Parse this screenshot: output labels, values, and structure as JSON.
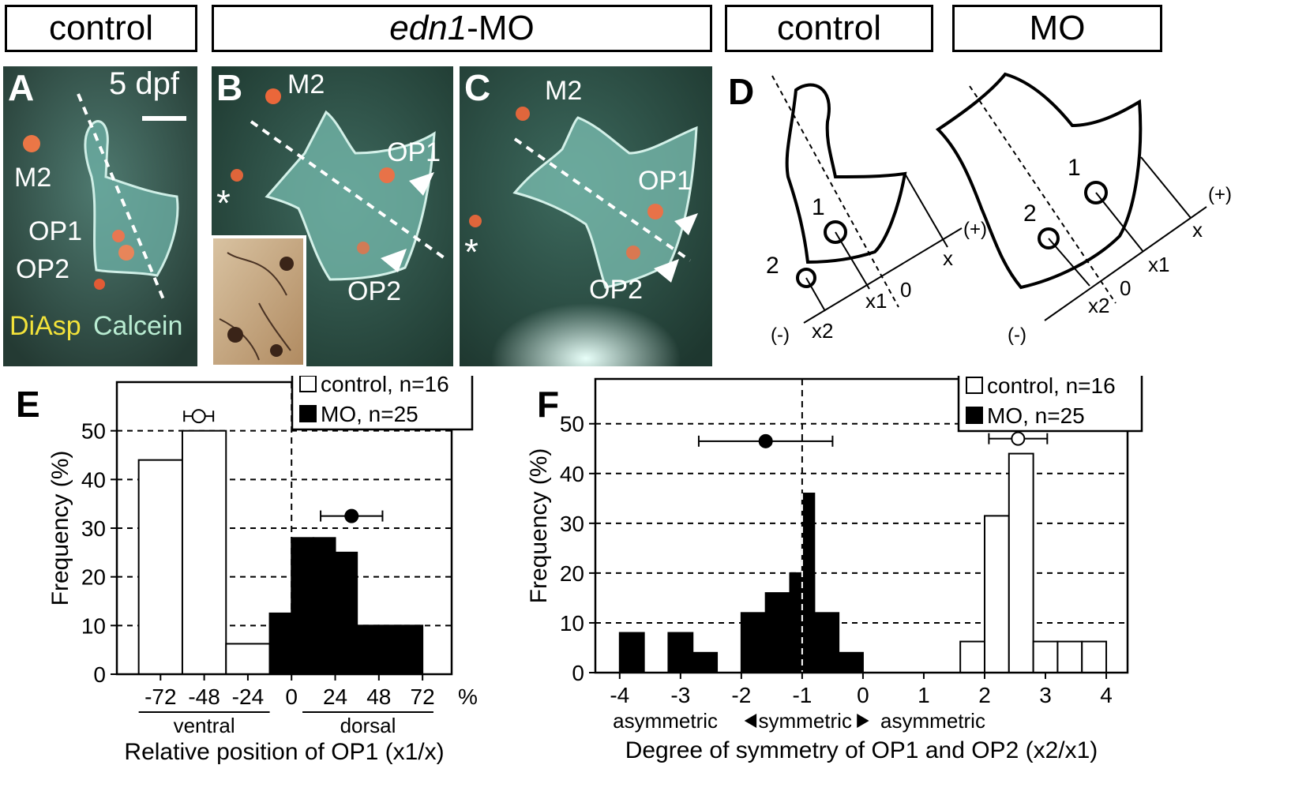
{
  "headers": {
    "control_left": "control",
    "edn1_italic": "edn1",
    "edn1_suffix": "-MO",
    "control_right": "control",
    "mo_right": "MO"
  },
  "panelA": {
    "letter": "A",
    "time": "5 dpf",
    "labels": {
      "m2": "M2",
      "op1": "OP1",
      "op2": "OP2"
    },
    "stain1": "DiAsp",
    "stain2": "Calcein"
  },
  "panelB": {
    "letter": "B",
    "labels": {
      "m2": "M2",
      "op1": "OP1",
      "op2": "OP2",
      "star": "*"
    }
  },
  "panelC": {
    "letter": "C",
    "labels": {
      "m2": "M2",
      "op1": "OP1",
      "op2": "OP2",
      "star": "*"
    }
  },
  "panelD": {
    "letter": "D",
    "left": {
      "n1": "1",
      "n2": "2",
      "x": "x",
      "x1": "x1",
      "x2": "x2",
      "zero": "0",
      "plus": "(+)",
      "minus": "(-)"
    },
    "right": {
      "n1": "1",
      "n2": "2",
      "x": "x",
      "x1": "x1",
      "x2": "x2",
      "zero": "0",
      "plus": "(+)",
      "minus": "(-)"
    }
  },
  "colors": {
    "bar_control": "#ffffff",
    "bar_mo": "#000000",
    "photo_bg": "#2f4a40",
    "cartilage": "#7fc4b8",
    "cell": "#ff6a3a"
  },
  "chart_data": [
    {
      "type": "bar",
      "panel": "E",
      "xlabel": "Relative position of OP1 (x1/x)",
      "ylabel": "Frequency (%)",
      "ylim": [
        0,
        60
      ],
      "yticks": [
        "0",
        "10",
        "20",
        "30",
        "40",
        "50"
      ],
      "xticks": [
        "-72",
        "-48",
        "-24",
        "0",
        "24",
        "48",
        "72"
      ],
      "xunit": "%",
      "region_labels": [
        "ventral",
        "dorsal"
      ],
      "legend": [
        "control, n=16",
        "MO, n=25"
      ],
      "series": [
        {
          "name": "control, n=16",
          "bins": [
            [
              -84,
              -60,
              44
            ],
            [
              -60,
              -36,
              50
            ],
            [
              -36,
              -12,
              6.25
            ]
          ]
        },
        {
          "name": "MO, n=25",
          "bins": [
            [
              -12,
              0,
              12.5
            ],
            [
              0,
              12,
              28
            ],
            [
              12,
              24,
              28
            ],
            [
              24,
              36,
              25
            ],
            [
              36,
              48,
              10
            ],
            [
              48,
              60,
              10
            ],
            [
              60,
              72,
              10
            ]
          ]
        }
      ],
      "means": [
        {
          "series": "control, n=16",
          "mean": -51,
          "err": 8,
          "y": 53
        },
        {
          "series": "MO, n=25",
          "mean": 33,
          "err": 17,
          "y": 32.5
        }
      ]
    },
    {
      "type": "bar",
      "panel": "F",
      "xlabel": "Degree of symmetry of OP1 and OP2 (x2/x1)",
      "ylabel": "Frequency (%)",
      "ylim": [
        0,
        59
      ],
      "yticks": [
        "0",
        "10",
        "20",
        "30",
        "40",
        "50"
      ],
      "xticks": [
        "-4",
        "-3",
        "-2",
        "-1",
        "0",
        "1",
        "2",
        "3",
        "4"
      ],
      "axis_notes": [
        "asymmetric",
        "symmetric",
        "asymmetric"
      ],
      "legend": [
        "control, n=16",
        "MO, n=25"
      ],
      "series": [
        {
          "name": "control, n=16",
          "bins": [
            [
              1.6,
              2.0,
              6.25
            ],
            [
              2.0,
              2.4,
              31.5
            ],
            [
              2.4,
              2.8,
              44
            ],
            [
              2.8,
              3.2,
              6.25
            ],
            [
              3.2,
              3.6,
              6.25
            ],
            [
              3.6,
              4.0,
              6.25
            ]
          ]
        },
        {
          "name": "MO, n=25",
          "bins": [
            [
              -4.0,
              -3.6,
              8
            ],
            [
              -3.2,
              -2.8,
              8
            ],
            [
              -2.8,
              -2.4,
              4
            ],
            [
              -2.0,
              -1.6,
              12
            ],
            [
              -1.6,
              -1.2,
              16
            ],
            [
              -1.2,
              -0.8,
              20
            ],
            [
              -1.0,
              -0.8,
              36
            ],
            [
              -0.8,
              -0.4,
              12
            ],
            [
              -0.4,
              0.0,
              4
            ]
          ]
        }
      ],
      "means": [
        {
          "series": "control, n=16",
          "mean": 2.55,
          "err": 0.48,
          "y": 47
        },
        {
          "series": "MO, n=25",
          "mean": -1.6,
          "err": 1.1,
          "y": 46.5
        }
      ]
    }
  ]
}
